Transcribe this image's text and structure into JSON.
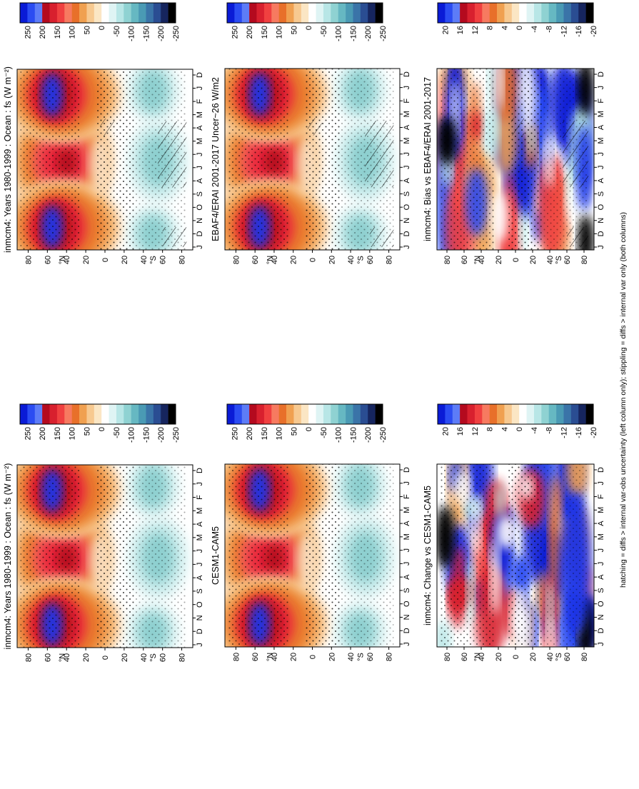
{
  "figure": {
    "footnote": "hatching = diffs > internal var-obs uncertainty (left column only); stippling = diffs > internal var only (both columns)"
  },
  "colorbars": {
    "absolute_labels": [
      "250",
      "200",
      "150",
      "100",
      "50",
      "0",
      "-50",
      "-100",
      "-150",
      "-200",
      "-250"
    ],
    "difference_labels": [
      "20",
      "16",
      "12",
      "8",
      "4",
      "0",
      "-4",
      "-8",
      "-12",
      "-16",
      "-20"
    ],
    "absolute_colors": [
      "#0a1bd6",
      "#2b4cf2",
      "#5d7cf7",
      "#b40a1e",
      "#d8202e",
      "#f04040",
      "#f77a60",
      "#e8702a",
      "#f0a050",
      "#f7c990",
      "#fbe6c4",
      "#ffffff",
      "#dff4f4",
      "#b8e6e6",
      "#8fd2d2",
      "#66b8c2",
      "#4a9ab4",
      "#3a74a8",
      "#2a4d92",
      "#16255e",
      "#000000"
    ],
    "difference_colors": [
      "#0a1bd6",
      "#2b4cf2",
      "#5d7cf7",
      "#b40a1e",
      "#d8202e",
      "#f04040",
      "#f77a60",
      "#e8702a",
      "#f0a050",
      "#f7c990",
      "#fbe6c4",
      "#ffffff",
      "#dff4f4",
      "#b8e6e6",
      "#8fd2d2",
      "#66b8c2",
      "#4a9ab4",
      "#3a74a8",
      "#2a4d92",
      "#16255e",
      "#000000"
    ]
  },
  "chart_data": [
    {
      "type": "heatmap",
      "panel": "top-left",
      "title": "inmcm4: Years 1980-1999 : Ocean : fs (W m⁻²)",
      "x_ticks": [
        "D",
        "J",
        "F",
        "M",
        "A",
        "M",
        "J",
        "J",
        "A",
        "S",
        "O",
        "N",
        "D",
        "J"
      ],
      "y_ticks": [
        "80",
        "60",
        "40",
        "20",
        "0",
        "20",
        "40",
        "60",
        "80"
      ],
      "y_hemisphere_labels": [
        "°N",
        "°S"
      ],
      "clim": [
        -250,
        250
      ],
      "colorbar": "absolute",
      "hatching": true,
      "stippling": true
    },
    {
      "type": "heatmap",
      "panel": "top-right",
      "title": "inmcm4: Years 1980-1999 : Ocean : fs (W m⁻²)",
      "x_ticks": [
        "D",
        "J",
        "F",
        "M",
        "A",
        "M",
        "J",
        "J",
        "A",
        "S",
        "O",
        "N",
        "D",
        "J"
      ],
      "y_ticks": [
        "80",
        "60",
        "40",
        "20",
        "0",
        "20",
        "40",
        "60",
        "80"
      ],
      "y_hemisphere_labels": [
        "°N",
        "°S"
      ],
      "clim": [
        -250,
        250
      ],
      "colorbar": "absolute",
      "hatching": false,
      "stippling": true
    },
    {
      "type": "heatmap",
      "panel": "middle-left",
      "title": "EBAF4/ERAI 2001-2017 Uncer~26 W/m2",
      "x_ticks": [
        "D",
        "J",
        "F",
        "M",
        "A",
        "M",
        "J",
        "J",
        "A",
        "S",
        "O",
        "N",
        "D",
        "J"
      ],
      "y_ticks": [
        "80",
        "60",
        "40",
        "20",
        "0",
        "20",
        "40",
        "60",
        "80"
      ],
      "y_hemisphere_labels": [
        "°N",
        "°S"
      ],
      "clim": [
        -250,
        250
      ],
      "colorbar": "absolute",
      "hatching": true,
      "stippling": true
    },
    {
      "type": "heatmap",
      "panel": "middle-right",
      "title": "CESM1-CAM5",
      "x_ticks": [
        "D",
        "J",
        "F",
        "M",
        "A",
        "M",
        "J",
        "J",
        "A",
        "S",
        "O",
        "N",
        "D",
        "J"
      ],
      "y_ticks": [
        "80",
        "60",
        "40",
        "20",
        "0",
        "20",
        "40",
        "60",
        "80"
      ],
      "y_hemisphere_labels": [
        "°N",
        "°S"
      ],
      "clim": [
        -250,
        250
      ],
      "colorbar": "absolute",
      "hatching": false,
      "stippling": true
    },
    {
      "type": "heatmap",
      "panel": "bottom-left",
      "title": "inmcm4: Bias vs EBAF4/ERAI 2001-2017",
      "x_ticks": [
        "D",
        "J",
        "F",
        "M",
        "A",
        "M",
        "J",
        "J",
        "A",
        "S",
        "O",
        "N",
        "D",
        "J"
      ],
      "y_ticks": [
        "80",
        "60",
        "40",
        "20",
        "0",
        "20",
        "40",
        "60",
        "80"
      ],
      "y_hemisphere_labels": [
        "°N",
        "°S"
      ],
      "clim": [
        -20,
        20
      ],
      "colorbar": "difference",
      "hatching": true,
      "stippling": true
    },
    {
      "type": "heatmap",
      "panel": "bottom-right",
      "title": "inmcm4: Change vs CESM1-CAM5",
      "x_ticks": [
        "D",
        "J",
        "F",
        "M",
        "A",
        "M",
        "J",
        "J",
        "A",
        "S",
        "O",
        "N",
        "D",
        "J"
      ],
      "y_ticks": [
        "80",
        "60",
        "40",
        "20",
        "0",
        "20",
        "40",
        "60",
        "80"
      ],
      "y_hemisphere_labels": [
        "°N",
        "°S"
      ],
      "clim": [
        -20,
        20
      ],
      "colorbar": "difference",
      "hatching": false,
      "stippling": true
    }
  ]
}
